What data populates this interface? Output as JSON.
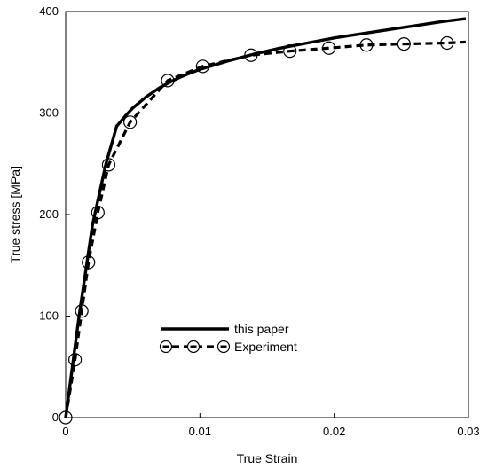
{
  "chart_data": {
    "type": "line",
    "title": "",
    "xlabel": "True Strain",
    "ylabel": "True stress [MPa]",
    "xlim": [
      0,
      0.03
    ],
    "ylim": [
      0,
      400
    ],
    "xticks": [
      0,
      0.01,
      0.02,
      0.03
    ],
    "xtick_labels": [
      "0",
      "0.01",
      "0.02",
      "0.03"
    ],
    "yticks": [
      0,
      100,
      200,
      300,
      400
    ],
    "ytick_labels": [
      "0",
      "100",
      "200",
      "300",
      "400"
    ],
    "grid": false,
    "legend_position": "lower-center",
    "series": [
      {
        "name": "this paper",
        "style": "solid",
        "color": "#000000",
        "marker": "none",
        "x": [
          0,
          0.001,
          0.002,
          0.003,
          0.0038,
          0.0045,
          0.005,
          0.006,
          0.007,
          0.008,
          0.009,
          0.01,
          0.012,
          0.014,
          0.016,
          0.018,
          0.02,
          0.022,
          0.024,
          0.026,
          0.028,
          0.0298
        ],
        "y": [
          0,
          100,
          190,
          250,
          287,
          298,
          305,
          316,
          325,
          332,
          338,
          343,
          351,
          358,
          364,
          369,
          374,
          378,
          382,
          386,
          390,
          393
        ]
      },
      {
        "name": "Experiment",
        "style": "dashed",
        "color": "#000000",
        "marker": "circle",
        "x": [
          0,
          0.0007,
          0.0012,
          0.0017,
          0.0024,
          0.0032,
          0.0048,
          0.0076,
          0.0102,
          0.0138,
          0.0167,
          0.0196,
          0.0224,
          0.0252,
          0.0284,
          0.0298
        ],
        "y": [
          0,
          57,
          105,
          153,
          202,
          249,
          291,
          332,
          346,
          357,
          361,
          364,
          367,
          368,
          369,
          370
        ]
      }
    ]
  }
}
